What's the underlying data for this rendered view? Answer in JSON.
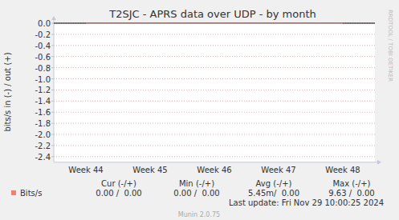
{
  "chart_data": {
    "type": "line",
    "title": "T2SJC - APRS data over UDP - by month",
    "y_label": "bits/s in (-) / out (+)",
    "categories": [
      "Week 44",
      "Week 45",
      "Week 46",
      "Week 47",
      "Week 48"
    ],
    "series": [
      {
        "name": "Bits/s",
        "color": "#f08070",
        "values": [
          -0.005,
          -0.006,
          -0.005,
          -0.006,
          -0.005
        ],
        "stats": [
          "0.00 /  0.00",
          "0.00 /  0.00",
          "5.45m/  0.00",
          "9.63 /  0.00"
        ]
      }
    ],
    "ylim": [
      -2.5,
      0
    ],
    "yticks": [
      {
        "value": 0,
        "label": "0.0"
      },
      -0.2,
      -0.4,
      -0.6,
      -0.8,
      {
        "value": -1,
        "label": "-1.0"
      },
      -1.2,
      -1.4,
      -1.6,
      -1.8,
      {
        "value": -2,
        "label": "-2.0"
      },
      -2.2,
      -2.4
    ],
    "grid": true,
    "legend_table": {
      "headers": [
        "Cur (-/+)",
        "Min (-/+)",
        "Avg (-/+)",
        "Max (-/+)"
      ]
    },
    "annotations": [
      "Last update: Fri Nov 29 10:00:25 2024",
      "Munin 2.0.75",
      "RRDTOOL / TOBI OETIKER"
    ]
  }
}
